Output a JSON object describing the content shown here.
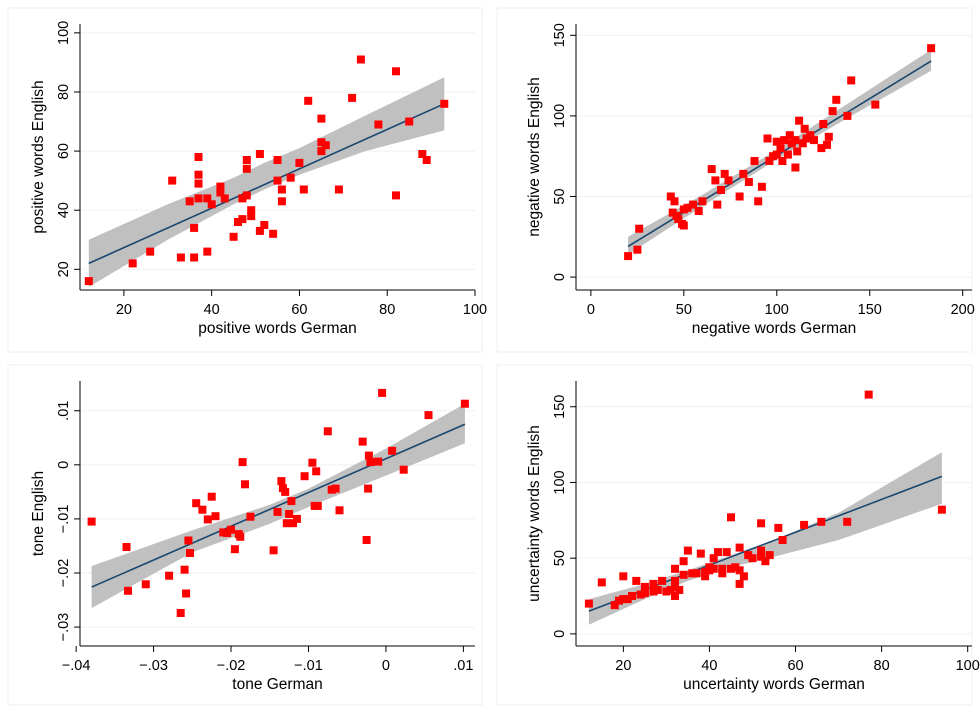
{
  "chart_data": [
    {
      "type": "scatter",
      "xlabel": "positive words German",
      "ylabel": "positive words English",
      "xlim": [
        10,
        100
      ],
      "ylim": [
        13,
        103
      ],
      "xticks": [
        20,
        40,
        60,
        80,
        100
      ],
      "xtick_labels": [
        "20",
        "40",
        "60",
        "80",
        "100"
      ],
      "yticks": [
        20,
        40,
        60,
        80,
        100
      ],
      "ytick_labels": [
        "20",
        "40",
        "60",
        "80",
        "100"
      ],
      "grid": true,
      "colors": {
        "points": "#ff0000",
        "fit_line": "#1a476f",
        "ci_band": "#c0c0c0"
      },
      "fit_line": {
        "x": [
          12,
          93
        ],
        "y": [
          22,
          76
        ]
      },
      "ci_band": {
        "x": [
          12,
          30,
          45,
          52,
          60,
          75,
          93
        ],
        "lower": [
          14,
          30,
          42,
          47,
          52,
          60,
          67
        ],
        "upper": [
          30,
          42,
          51,
          56,
          61,
          72,
          85
        ]
      },
      "points": [
        [
          12,
          16
        ],
        [
          22,
          22
        ],
        [
          26,
          26
        ],
        [
          31,
          50
        ],
        [
          33,
          24
        ],
        [
          35,
          43
        ],
        [
          36,
          24
        ],
        [
          36,
          34
        ],
        [
          37,
          58
        ],
        [
          37,
          52
        ],
        [
          37,
          49
        ],
        [
          37,
          44
        ],
        [
          39,
          26
        ],
        [
          39,
          44
        ],
        [
          40,
          42
        ],
        [
          42,
          48
        ],
        [
          42,
          46
        ],
        [
          43,
          44
        ],
        [
          45,
          31
        ],
        [
          46,
          36
        ],
        [
          47,
          44
        ],
        [
          47,
          37
        ],
        [
          48,
          54
        ],
        [
          48,
          57
        ],
        [
          48,
          45
        ],
        [
          49,
          38
        ],
        [
          49,
          40
        ],
        [
          51,
          33
        ],
        [
          51,
          59
        ],
        [
          52,
          35
        ],
        [
          54,
          32
        ],
        [
          55,
          57
        ],
        [
          55,
          50
        ],
        [
          56,
          43
        ],
        [
          56,
          47
        ],
        [
          58,
          51
        ],
        [
          60,
          56
        ],
        [
          61,
          47
        ],
        [
          62,
          77
        ],
        [
          65,
          71
        ],
        [
          65,
          60
        ],
        [
          65,
          63
        ],
        [
          66,
          62
        ],
        [
          69,
          47
        ],
        [
          72,
          78
        ],
        [
          74,
          91
        ],
        [
          78,
          69
        ],
        [
          82,
          45
        ],
        [
          82,
          87
        ],
        [
          85,
          70
        ],
        [
          88,
          59
        ],
        [
          89,
          57
        ],
        [
          93,
          76
        ]
      ]
    },
    {
      "type": "scatter",
      "xlabel": "negative words German",
      "ylabel": "negative words English",
      "xlim": [
        -8,
        205
      ],
      "ylim": [
        -8,
        157
      ],
      "xticks": [
        0,
        50,
        100,
        150,
        200
      ],
      "xtick_labels": [
        "0",
        "50",
        "100",
        "150",
        "200"
      ],
      "yticks": [
        0,
        50,
        100,
        150
      ],
      "ytick_labels": [
        "0",
        "50",
        "100",
        "150"
      ],
      "grid": true,
      "colors": {
        "points": "#ff0000",
        "fit_line": "#1a476f",
        "ci_band": "#c0c0c0"
      },
      "fit_line": {
        "x": [
          20,
          183
        ],
        "y": [
          19,
          134
        ]
      },
      "ci_band": {
        "x": [
          20,
          60,
          100,
          140,
          183
        ],
        "lower": [
          14,
          44,
          73,
          100,
          128
        ],
        "upper": [
          25,
          51,
          79,
          109,
          141
        ]
      },
      "points": [
        [
          20,
          13
        ],
        [
          25,
          17
        ],
        [
          26,
          30
        ],
        [
          43,
          50
        ],
        [
          44,
          40
        ],
        [
          45,
          47
        ],
        [
          46,
          38
        ],
        [
          47,
          36
        ],
        [
          49,
          33
        ],
        [
          50,
          32
        ],
        [
          50,
          42
        ],
        [
          52,
          43
        ],
        [
          55,
          45
        ],
        [
          58,
          41
        ],
        [
          60,
          47
        ],
        [
          65,
          67
        ],
        [
          67,
          60
        ],
        [
          68,
          45
        ],
        [
          70,
          54
        ],
        [
          72,
          64
        ],
        [
          74,
          60
        ],
        [
          80,
          50
        ],
        [
          82,
          64
        ],
        [
          85,
          59
        ],
        [
          88,
          72
        ],
        [
          90,
          47
        ],
        [
          92,
          56
        ],
        [
          95,
          86
        ],
        [
          96,
          72
        ],
        [
          98,
          75
        ],
        [
          100,
          76
        ],
        [
          100,
          84
        ],
        [
          102,
          80
        ],
        [
          103,
          72
        ],
        [
          104,
          85
        ],
        [
          106,
          76
        ],
        [
          107,
          88
        ],
        [
          108,
          83
        ],
        [
          110,
          85
        ],
        [
          110,
          68
        ],
        [
          111,
          78
        ],
        [
          112,
          97
        ],
        [
          114,
          83
        ],
        [
          115,
          92
        ],
        [
          116,
          86
        ],
        [
          118,
          88
        ],
        [
          120,
          85
        ],
        [
          124,
          80
        ],
        [
          125,
          95
        ],
        [
          127,
          82
        ],
        [
          128,
          87
        ],
        [
          130,
          103
        ],
        [
          132,
          110
        ],
        [
          138,
          100
        ],
        [
          140,
          122
        ],
        [
          153,
          107
        ],
        [
          183,
          142
        ]
      ]
    },
    {
      "type": "scatter",
      "xlabel": "tone German",
      "ylabel": "tone English",
      "xlim": [
        -0.0395,
        0.0115
      ],
      "ylim": [
        -0.0335,
        0.0155
      ],
      "xticks": [
        -0.04,
        -0.03,
        -0.02,
        -0.01,
        0,
        0.01
      ],
      "xtick_labels": [
        "−.04",
        "−.03",
        "−.02",
        "−.01",
        "0",
        ".01"
      ],
      "yticks": [
        -0.03,
        -0.02,
        -0.01,
        0,
        0.01
      ],
      "ytick_labels": [
        "−.03",
        "−.02",
        "−.01",
        "0",
        ".01"
      ],
      "grid": true,
      "colors": {
        "points": "#ff0000",
        "fit_line": "#1a476f",
        "ci_band": "#c0c0c0"
      },
      "fit_line": {
        "x": [
          -0.038,
          0.0102
        ],
        "y": [
          -0.0226,
          0.0075
        ]
      },
      "ci_band": {
        "x": [
          -0.038,
          -0.025,
          -0.015,
          -0.01,
          0,
          0.0102
        ],
        "lower": [
          -0.0265,
          -0.0162,
          -0.0109,
          -0.0078,
          -0.002,
          0.004
        ],
        "upper": [
          -0.0187,
          -0.0121,
          -0.0074,
          -0.0044,
          0.003,
          0.0113
        ]
      },
      "points": [
        [
          -0.038,
          -0.0105
        ],
        [
          -0.0335,
          -0.0152
        ],
        [
          -0.0333,
          -0.0233
        ],
        [
          -0.031,
          -0.0221
        ],
        [
          -0.028,
          -0.0205
        ],
        [
          -0.0265,
          -0.0274
        ],
        [
          -0.026,
          -0.0194
        ],
        [
          -0.0258,
          -0.0238
        ],
        [
          -0.0255,
          -0.014
        ],
        [
          -0.0253,
          -0.0163
        ],
        [
          -0.0245,
          -0.0071
        ],
        [
          -0.0237,
          -0.0083
        ],
        [
          -0.023,
          -0.0101
        ],
        [
          -0.0225,
          -0.0059
        ],
        [
          -0.022,
          -0.0095
        ],
        [
          -0.021,
          -0.0125
        ],
        [
          -0.0205,
          -0.0126
        ],
        [
          -0.02,
          -0.012
        ],
        [
          -0.0195,
          -0.0156
        ],
        [
          -0.019,
          -0.0128
        ],
        [
          -0.0188,
          -0.0133
        ],
        [
          -0.0185,
          0.0005
        ],
        [
          -0.0182,
          -0.0036
        ],
        [
          -0.0175,
          -0.0096
        ],
        [
          -0.0145,
          -0.0158
        ],
        [
          -0.014,
          -0.0087
        ],
        [
          -0.0135,
          -0.003
        ],
        [
          -0.0133,
          -0.0043
        ],
        [
          -0.013,
          -0.005
        ],
        [
          -0.0128,
          -0.0108
        ],
        [
          -0.0125,
          -0.0091
        ],
        [
          -0.0122,
          -0.0067
        ],
        [
          -0.012,
          -0.0108
        ],
        [
          -0.0115,
          -0.01
        ],
        [
          -0.0105,
          -0.0021
        ],
        [
          -0.0095,
          0.0004
        ],
        [
          -0.0092,
          -0.0076
        ],
        [
          -0.009,
          -0.0012
        ],
        [
          -0.0088,
          -0.0076
        ],
        [
          -0.0075,
          0.0062
        ],
        [
          -0.007,
          -0.0046
        ],
        [
          -0.0065,
          -0.0044
        ],
        [
          -0.006,
          -0.0084
        ],
        [
          -0.003,
          0.0043
        ],
        [
          -0.0025,
          -0.0139
        ],
        [
          -0.0023,
          -0.0044
        ],
        [
          -0.0022,
          0.0017
        ],
        [
          -0.002,
          0.0005
        ],
        [
          -0.001,
          0.0006
        ],
        [
          -0.0005,
          0.0133
        ],
        [
          0.0008,
          0.0026
        ],
        [
          0.0023,
          -0.0009
        ],
        [
          0.0055,
          0.0092
        ],
        [
          0.0102,
          0.0113
        ]
      ]
    },
    {
      "type": "scatter",
      "xlabel": "uncertainty words German",
      "ylabel": "uncertainty words English",
      "xlim": [
        9,
        101
      ],
      "ylim": [
        -8,
        167
      ],
      "xticks": [
        20,
        40,
        60,
        80,
        100
      ],
      "xtick_labels": [
        "20",
        "40",
        "60",
        "80",
        "100"
      ],
      "yticks": [
        0,
        50,
        100,
        150
      ],
      "ytick_labels": [
        "0",
        "50",
        "100",
        "150"
      ],
      "grid": true,
      "colors": {
        "points": "#ff0000",
        "fit_line": "#1a476f",
        "ci_band": "#c0c0c0"
      },
      "fit_line": {
        "x": [
          12,
          94
        ],
        "y": [
          15,
          104
        ]
      },
      "ci_band": {
        "x": [
          12,
          25,
          35,
          45,
          55,
          70,
          94
        ],
        "lower": [
          6,
          23,
          35,
          44,
          51,
          62,
          86
        ],
        "upper": [
          23,
          33,
          42,
          52,
          62,
          80,
          120
        ]
      },
      "points": [
        [
          12,
          20
        ],
        [
          15,
          34
        ],
        [
          18,
          19
        ],
        [
          19,
          22
        ],
        [
          20,
          38
        ],
        [
          20,
          23
        ],
        [
          21,
          23
        ],
        [
          22,
          25
        ],
        [
          23,
          35
        ],
        [
          24,
          26
        ],
        [
          25,
          31
        ],
        [
          25,
          27
        ],
        [
          27,
          28
        ],
        [
          27,
          33
        ],
        [
          28,
          29
        ],
        [
          29,
          35
        ],
        [
          30,
          28
        ],
        [
          31,
          29
        ],
        [
          32,
          35
        ],
        [
          32,
          31
        ],
        [
          32,
          43
        ],
        [
          32,
          25
        ],
        [
          33,
          29
        ],
        [
          34,
          48
        ],
        [
          34,
          39
        ],
        [
          35,
          55
        ],
        [
          36,
          40
        ],
        [
          37,
          40
        ],
        [
          38,
          53
        ],
        [
          39,
          41
        ],
        [
          39,
          38
        ],
        [
          40,
          44
        ],
        [
          40,
          42
        ],
        [
          41,
          43
        ],
        [
          41,
          50
        ],
        [
          42,
          54
        ],
        [
          43,
          43
        ],
        [
          43,
          40
        ],
        [
          44,
          54
        ],
        [
          45,
          77
        ],
        [
          45,
          43
        ],
        [
          46,
          44
        ],
        [
          47,
          42
        ],
        [
          47,
          33
        ],
        [
          47,
          57
        ],
        [
          48,
          38
        ],
        [
          49,
          52
        ],
        [
          50,
          50
        ],
        [
          52,
          73
        ],
        [
          52,
          55
        ],
        [
          52,
          51
        ],
        [
          53,
          48
        ],
        [
          54,
          52
        ],
        [
          56,
          70
        ],
        [
          57,
          62
        ],
        [
          62,
          72
        ],
        [
          66,
          74
        ],
        [
          72,
          74
        ],
        [
          77,
          158
        ],
        [
          94,
          82
        ]
      ]
    }
  ]
}
